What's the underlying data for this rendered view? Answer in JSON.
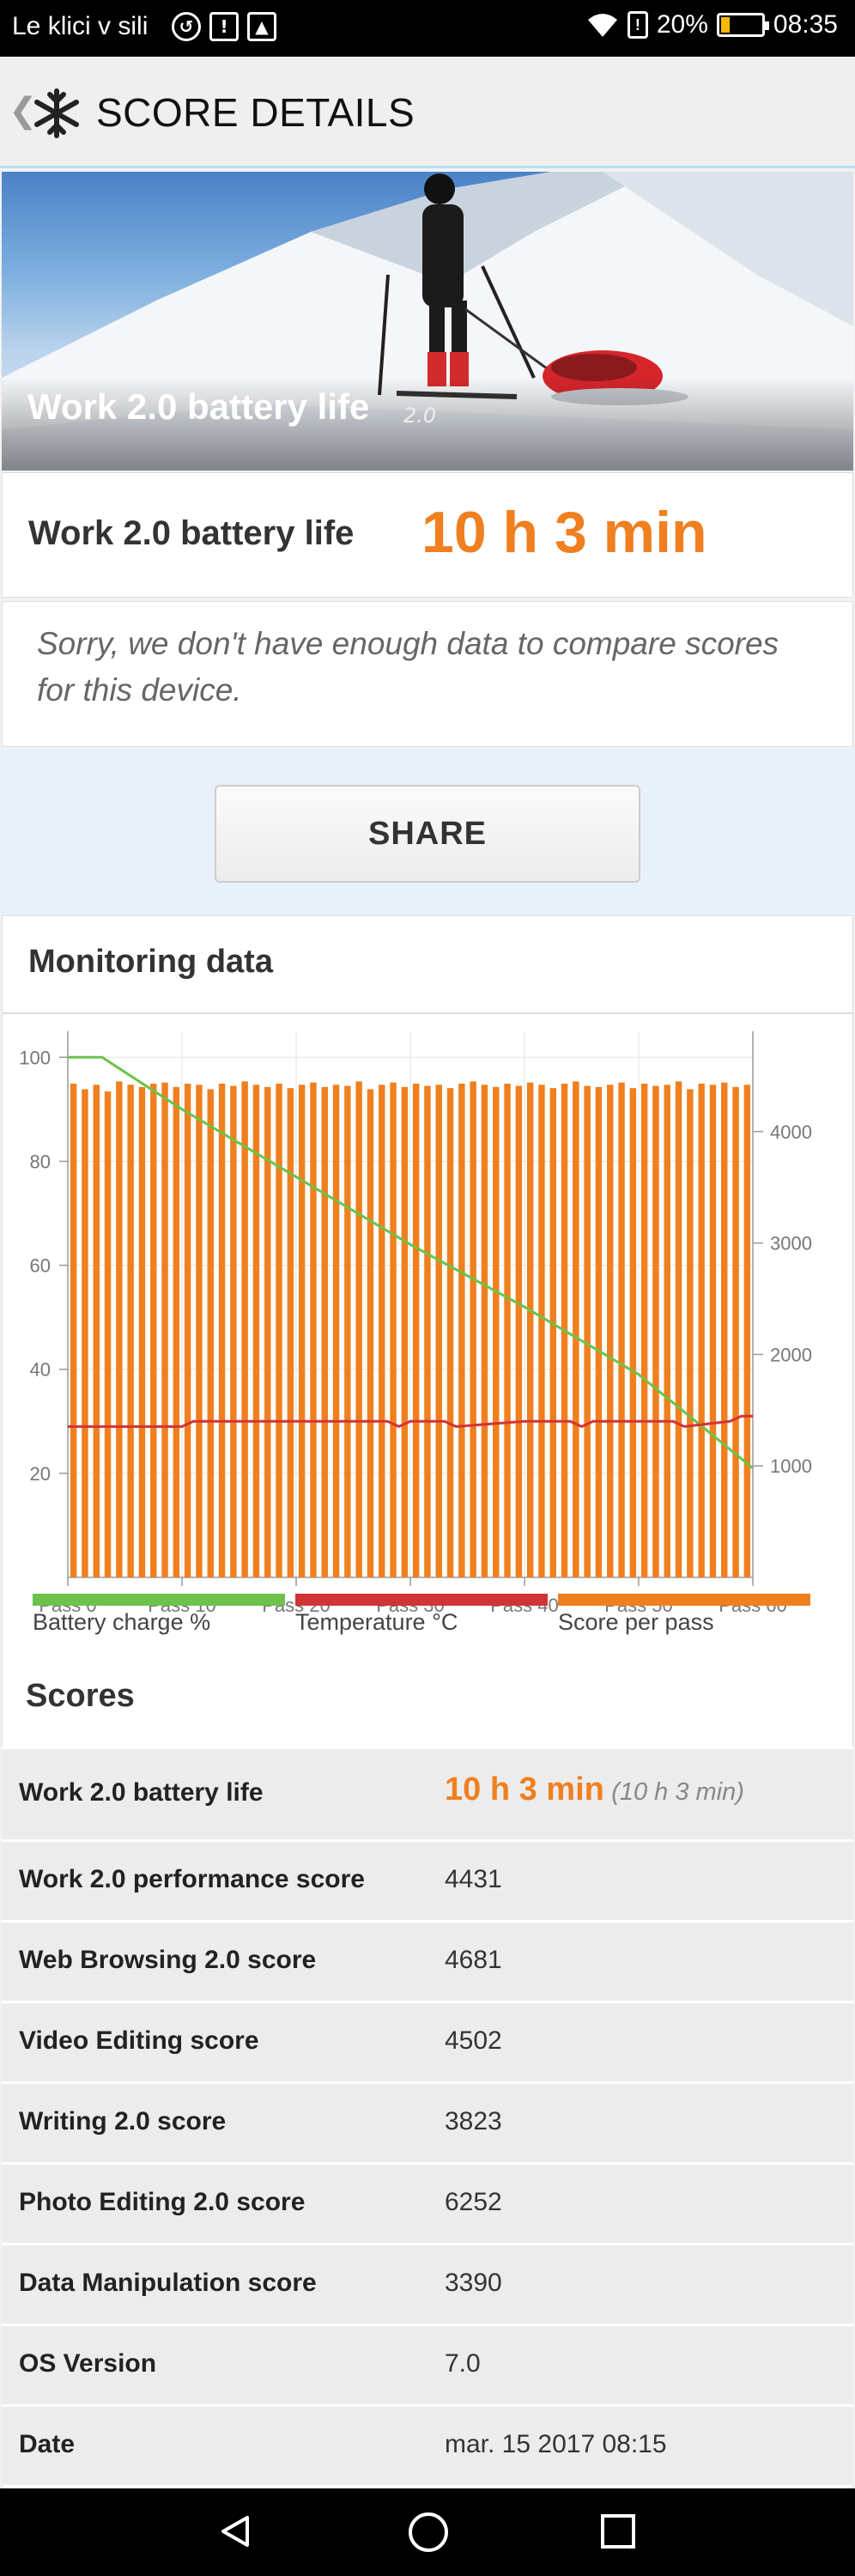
{
  "status_bar": {
    "carrier": "Le klici v sili",
    "battery_percent": "20%",
    "battery_level": 0.2,
    "time": "08:35"
  },
  "app_bar": {
    "title": "SCORE DETAILS",
    "back_icon": "chevron-left-icon",
    "logo_icon": "snowflake-icon"
  },
  "hero": {
    "caption": "Work 2.0 battery life",
    "version": "2.0"
  },
  "result": {
    "label": "Work 2.0 battery life",
    "value": "10 h 3 min"
  },
  "notice": {
    "text": "Sorry, we don't have enough data to compare scores for this device."
  },
  "share": {
    "label": "SHARE"
  },
  "monitoring": {
    "title": "Monitoring data"
  },
  "chart_data": {
    "type": "bar",
    "x_tick_labels": [
      "Pass 0",
      "Pass 10",
      "Pass 20",
      "Pass 30",
      "Pass 40",
      "Pass 50",
      "Pass 60"
    ],
    "x_range": [
      0,
      60
    ],
    "left_axis": {
      "ticks": [
        20,
        40,
        60,
        80,
        100
      ],
      "range": [
        0,
        105
      ]
    },
    "right_axis": {
      "ticks": [
        1000,
        2000,
        3000,
        4000
      ],
      "range": [
        0,
        4900
      ]
    },
    "grid": true,
    "series": [
      {
        "name": "Battery charge %",
        "type": "line",
        "axis": "left",
        "color": "#6cc24a",
        "x": [
          0,
          3,
          10,
          20,
          30,
          40,
          50,
          60
        ],
        "values": [
          100,
          100,
          90,
          77,
          64,
          52,
          39,
          21
        ]
      },
      {
        "name": "Temperature °C",
        "type": "line",
        "axis": "left",
        "color": "#d13438",
        "x": [
          0,
          5,
          10,
          11,
          20,
          28,
          29,
          30,
          33,
          34,
          40,
          44,
          45,
          46,
          47,
          50,
          53,
          54,
          58,
          59,
          60
        ],
        "values": [
          29,
          29,
          29,
          30,
          30,
          30,
          29,
          30,
          30,
          29,
          30,
          30,
          29,
          30,
          30,
          30,
          30,
          29,
          30,
          31,
          31
        ]
      },
      {
        "name": "Score per pass",
        "type": "bar",
        "axis": "right",
        "color": "#f07f1f",
        "values": [
          4430,
          4380,
          4420,
          4360,
          4450,
          4420,
          4400,
          4430,
          4440,
          4400,
          4430,
          4420,
          4380,
          4430,
          4410,
          4450,
          4420,
          4400,
          4430,
          4390,
          4420,
          4440,
          4400,
          4420,
          4410,
          4450,
          4380,
          4420,
          4440,
          4400,
          4430,
          4410,
          4420,
          4390,
          4430,
          4450,
          4420,
          4400,
          4430,
          4410,
          4440,
          4420,
          4390,
          4430,
          4450,
          4410,
          4400,
          4420,
          4440,
          4390,
          4430,
          4410,
          4420,
          4450,
          4380,
          4430,
          4420,
          4440,
          4400,
          4420
        ]
      }
    ]
  },
  "legend": [
    {
      "label": "Battery charge %",
      "color": "#6cc24a"
    },
    {
      "label": "Temperature °C",
      "color": "#d13438"
    },
    {
      "label": "Score per pass",
      "color": "#f07f1f"
    }
  ],
  "scores": {
    "title": "Scores",
    "first": {
      "label": "Work 2.0 battery life",
      "value": "10 h 3 min",
      "sub": "(10 h 3 min)"
    },
    "rows": [
      {
        "label": "Work 2.0 performance score",
        "value": "4431"
      },
      {
        "label": "Web Browsing 2.0 score",
        "value": "4681"
      },
      {
        "label": "Video Editing score",
        "value": "4502"
      },
      {
        "label": "Writing 2.0 score",
        "value": "3823"
      },
      {
        "label": "Photo Editing 2.0 score",
        "value": "6252"
      },
      {
        "label": "Data Manipulation score",
        "value": "3390"
      },
      {
        "label": "OS Version",
        "value": "7.0"
      },
      {
        "label": "Date",
        "value": "mar. 15 2017 08:15"
      }
    ]
  }
}
